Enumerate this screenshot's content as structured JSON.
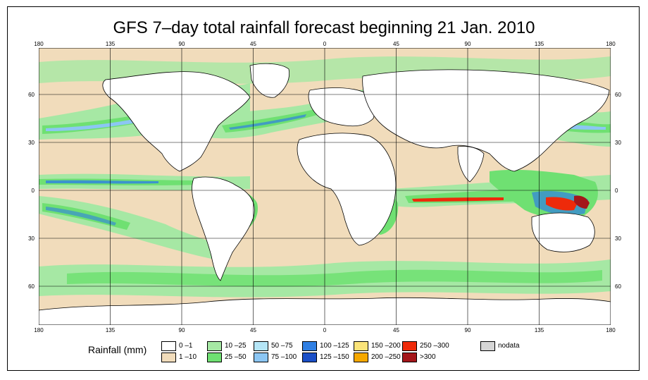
{
  "title": "GFS 7–day total rainfall forecast beginning 21 Jan. 2010",
  "axes": {
    "longitude_ticks": [
      "180",
      "135",
      "90",
      "45",
      "0",
      "45",
      "90",
      "135",
      "180"
    ],
    "latitude_ticks_left": [
      "60",
      "30",
      "0",
      "30",
      "60"
    ],
    "latitude_ticks_right": [
      "60",
      "30",
      "0",
      "30",
      "60"
    ]
  },
  "legend": {
    "title": "Rainfall (mm)",
    "items": [
      {
        "label": "0 –1",
        "color": "#ffffff"
      },
      {
        "label": "1 –10",
        "color": "#f1dcbb"
      },
      {
        "label": "10 –25",
        "color": "#a6e8a4"
      },
      {
        "label": "25 –50",
        "color": "#6fe072"
      },
      {
        "label": "50 –75",
        "color": "#b5e6f7"
      },
      {
        "label": "75 –100",
        "color": "#8cc6f3"
      },
      {
        "label": "100 –125",
        "color": "#2f7fe3"
      },
      {
        "label": "125 –150",
        "color": "#1a4fc7"
      },
      {
        "label": "150 –200",
        "color": "#fbe47a"
      },
      {
        "label": "200 –250",
        "color": "#f5a800"
      },
      {
        "label": "250 –300",
        "color": "#ee2a0a"
      },
      {
        "label": ">300",
        "color": "#a4161a"
      },
      {
        "label": "nodata",
        "color": "#d6d6d6"
      }
    ]
  },
  "colors": {
    "ocean_dry": "#f1dcbb",
    "land_dry": "#ffffff",
    "light_rain": "#a6e8a4",
    "moderate_rain": "#6fe072",
    "heavy_rain_blue": "#8cc6f3",
    "extreme_rain": "#ee2a0a"
  }
}
